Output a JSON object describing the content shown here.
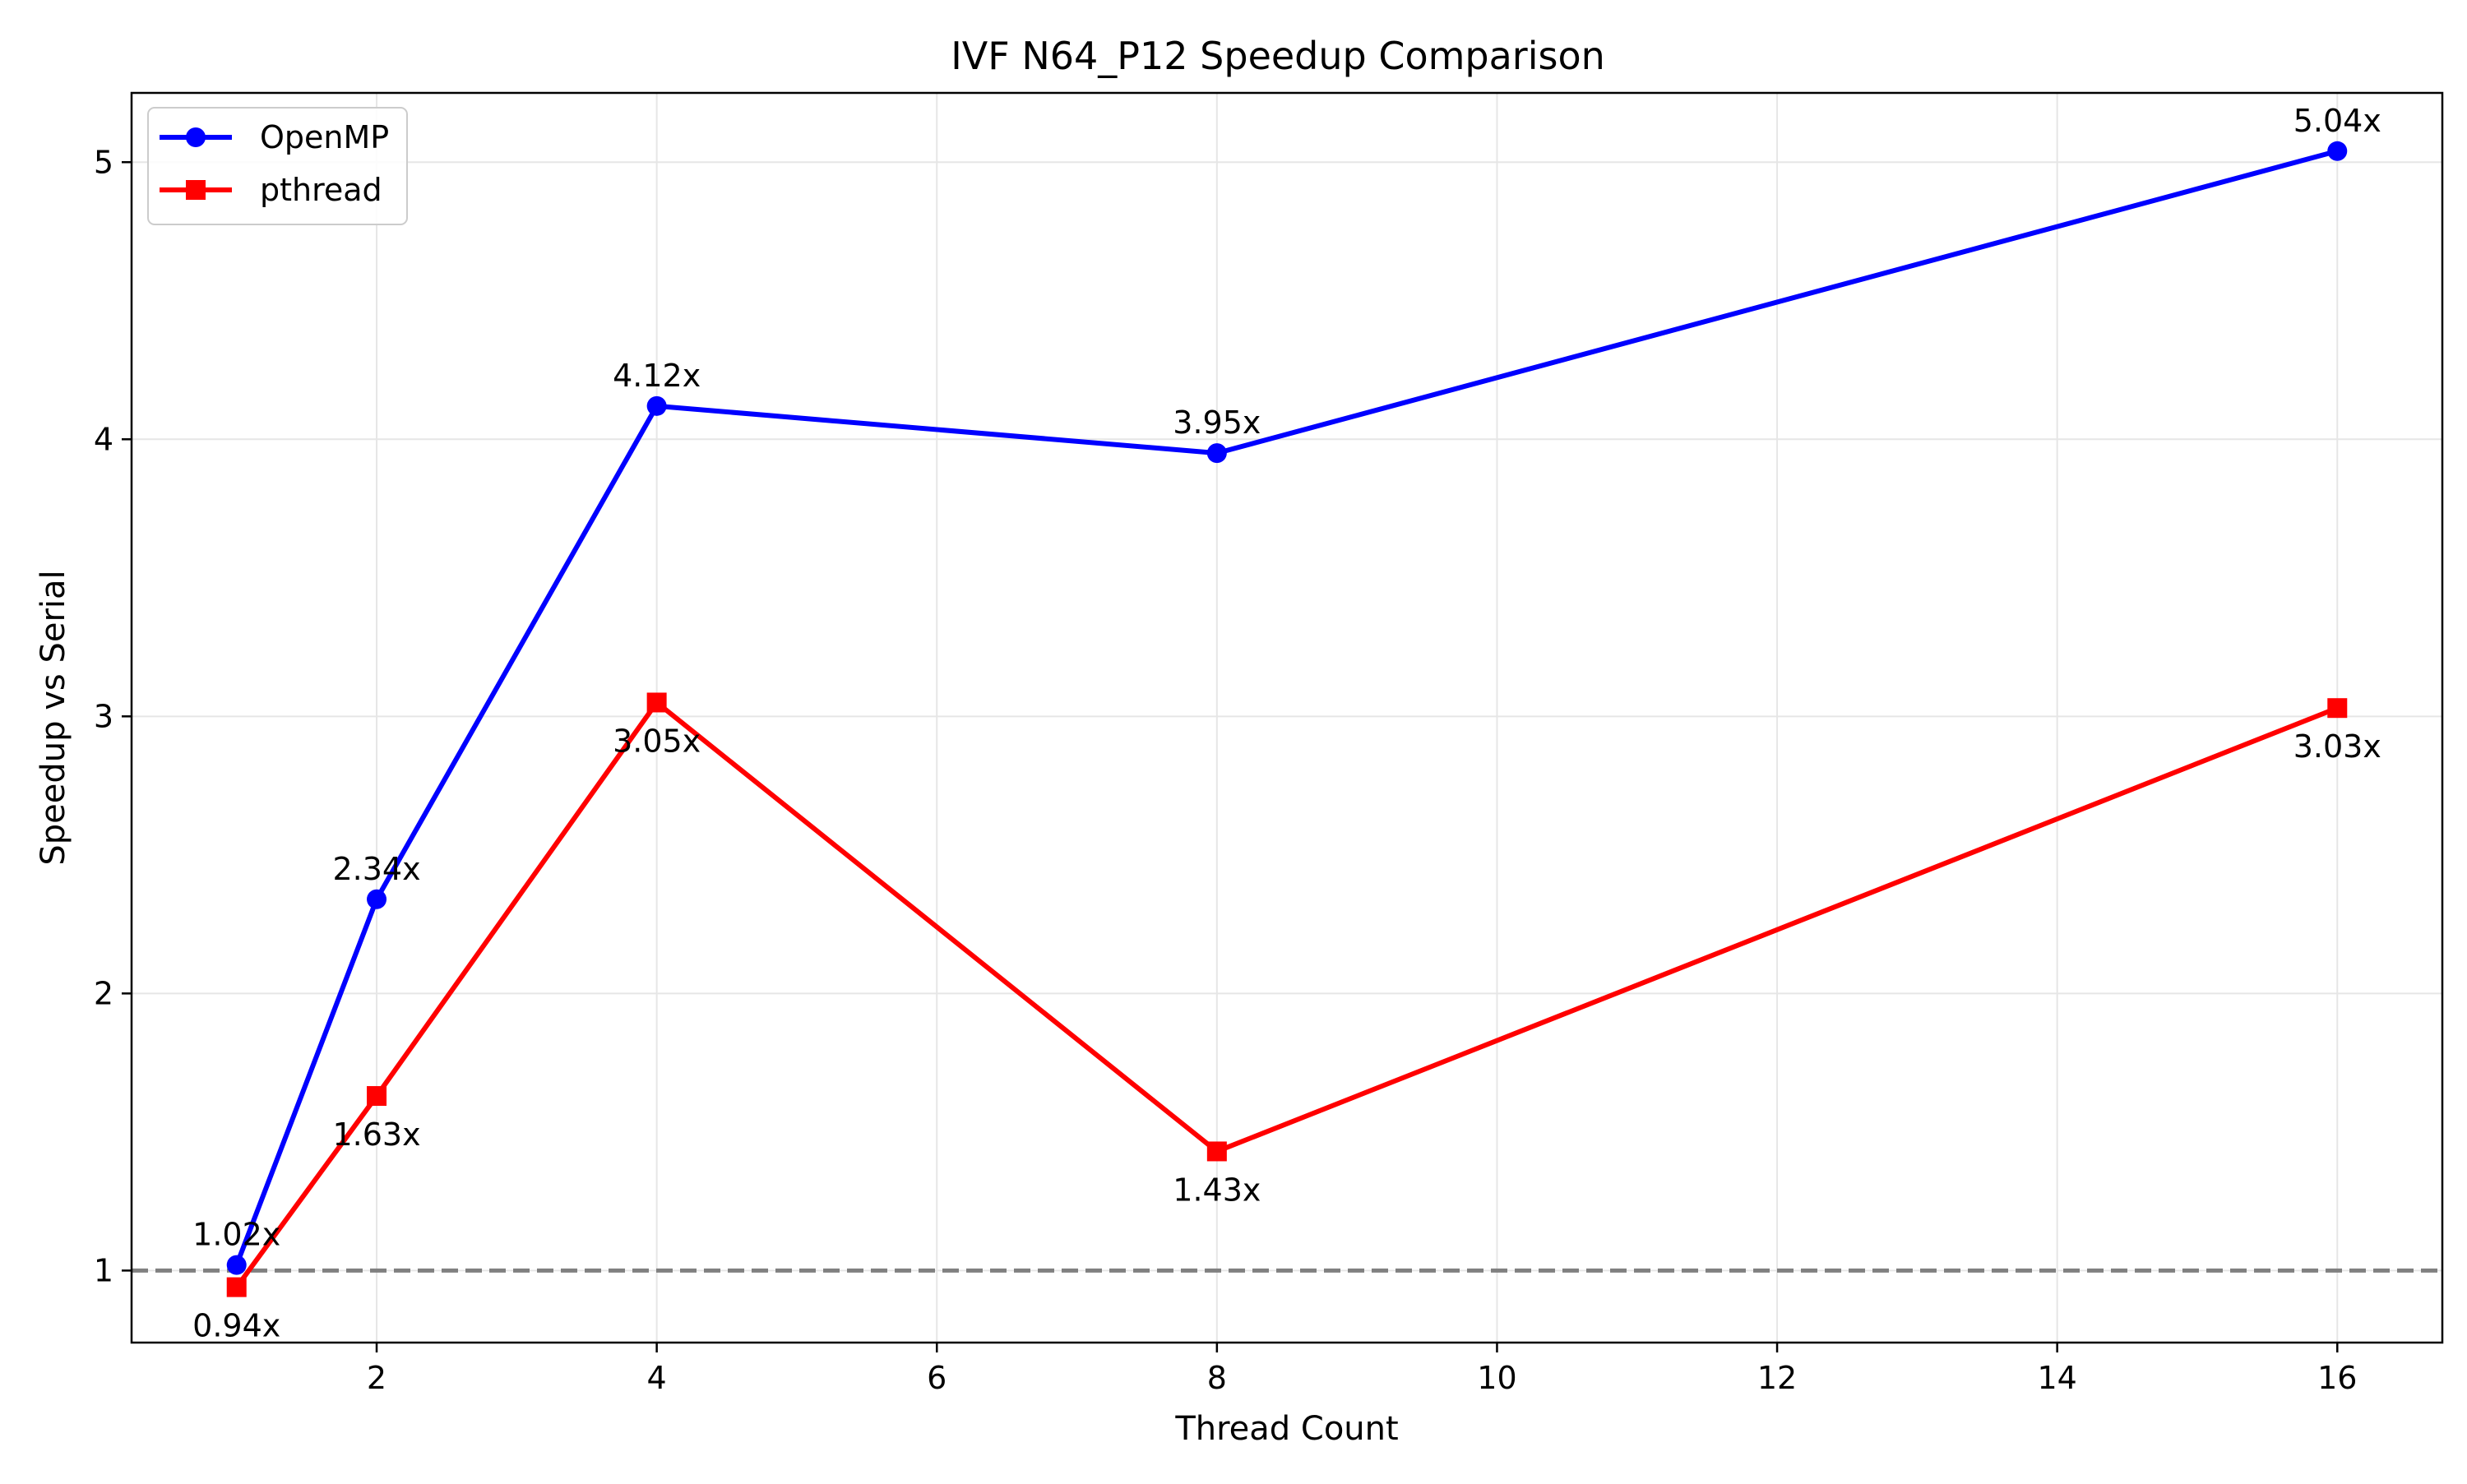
{
  "chart_data": {
    "type": "line",
    "title": "IVF N64_P12 Speedup Comparison",
    "xlabel": "Thread Count",
    "ylabel": "Speedup vs Serial",
    "x": [
      1,
      2,
      4,
      8,
      16
    ],
    "xlim": [
      0.25,
      16.75
    ],
    "ylim": [
      0.74,
      5.25
    ],
    "xticks": [
      2,
      4,
      6,
      8,
      10,
      12,
      14,
      16
    ],
    "yticks": [
      1,
      2,
      3,
      4,
      5
    ],
    "grid": true,
    "legend_position": "upper-left",
    "reference_line": {
      "y": 1,
      "style": "dashed",
      "color": "#808080"
    },
    "series": [
      {
        "name": "OpenMP",
        "color": "#0000ff",
        "marker": "circle",
        "values": [
          1.02,
          2.34,
          4.12,
          3.95,
          5.04
        ],
        "labels": [
          "1.02x",
          "2.34x",
          "4.12x",
          "3.95x",
          "5.04x"
        ],
        "label_position": "above"
      },
      {
        "name": "pthread",
        "color": "#ff0000",
        "marker": "square",
        "values": [
          0.94,
          1.63,
          3.05,
          1.43,
          3.03
        ],
        "labels": [
          "0.94x",
          "1.63x",
          "3.05x",
          "1.43x",
          "3.03x"
        ],
        "label_position": "below"
      }
    ]
  }
}
